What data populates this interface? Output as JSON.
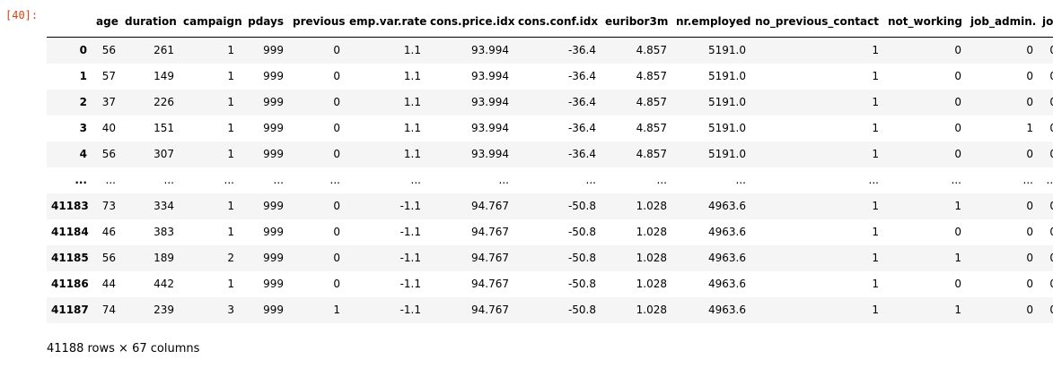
{
  "cell": {
    "prompt": "[40]:"
  },
  "table": {
    "columns": [
      "",
      "age",
      "duration",
      "campaign",
      "pdays",
      "previous",
      "emp.var.rate",
      "cons.price.idx",
      "cons.conf.idx",
      "euribor3m",
      "nr.employed",
      "no_previous_contact",
      "not_working",
      "job_admin.",
      "job"
    ],
    "rows": [
      [
        "0",
        "56",
        "261",
        "1",
        "999",
        "0",
        "1.1",
        "93.994",
        "-36.4",
        "4.857",
        "5191.0",
        "1",
        "0",
        "0",
        "0"
      ],
      [
        "1",
        "57",
        "149",
        "1",
        "999",
        "0",
        "1.1",
        "93.994",
        "-36.4",
        "4.857",
        "5191.0",
        "1",
        "0",
        "0",
        "0"
      ],
      [
        "2",
        "37",
        "226",
        "1",
        "999",
        "0",
        "1.1",
        "93.994",
        "-36.4",
        "4.857",
        "5191.0",
        "1",
        "0",
        "0",
        "0"
      ],
      [
        "3",
        "40",
        "151",
        "1",
        "999",
        "0",
        "1.1",
        "93.994",
        "-36.4",
        "4.857",
        "5191.0",
        "1",
        "0",
        "1",
        "0"
      ],
      [
        "4",
        "56",
        "307",
        "1",
        "999",
        "0",
        "1.1",
        "93.994",
        "-36.4",
        "4.857",
        "5191.0",
        "1",
        "0",
        "0",
        "0"
      ],
      [
        "...",
        "...",
        "...",
        "...",
        "...",
        "...",
        "...",
        "...",
        "...",
        "...",
        "...",
        "...",
        "...",
        "...",
        "..."
      ],
      [
        "41183",
        "73",
        "334",
        "1",
        "999",
        "0",
        "-1.1",
        "94.767",
        "-50.8",
        "1.028",
        "4963.6",
        "1",
        "1",
        "0",
        "0"
      ],
      [
        "41184",
        "46",
        "383",
        "1",
        "999",
        "0",
        "-1.1",
        "94.767",
        "-50.8",
        "1.028",
        "4963.6",
        "1",
        "0",
        "0",
        "0"
      ],
      [
        "41185",
        "56",
        "189",
        "2",
        "999",
        "0",
        "-1.1",
        "94.767",
        "-50.8",
        "1.028",
        "4963.6",
        "1",
        "1",
        "0",
        "0"
      ],
      [
        "41186",
        "44",
        "442",
        "1",
        "999",
        "0",
        "-1.1",
        "94.767",
        "-50.8",
        "1.028",
        "4963.6",
        "1",
        "0",
        "0",
        "0"
      ],
      [
        "41187",
        "74",
        "239",
        "3",
        "999",
        "1",
        "-1.1",
        "94.767",
        "-50.8",
        "1.028",
        "4963.6",
        "1",
        "1",
        "0",
        "0"
      ]
    ]
  },
  "footer": {
    "summary": "41188 rows × 67 columns"
  }
}
